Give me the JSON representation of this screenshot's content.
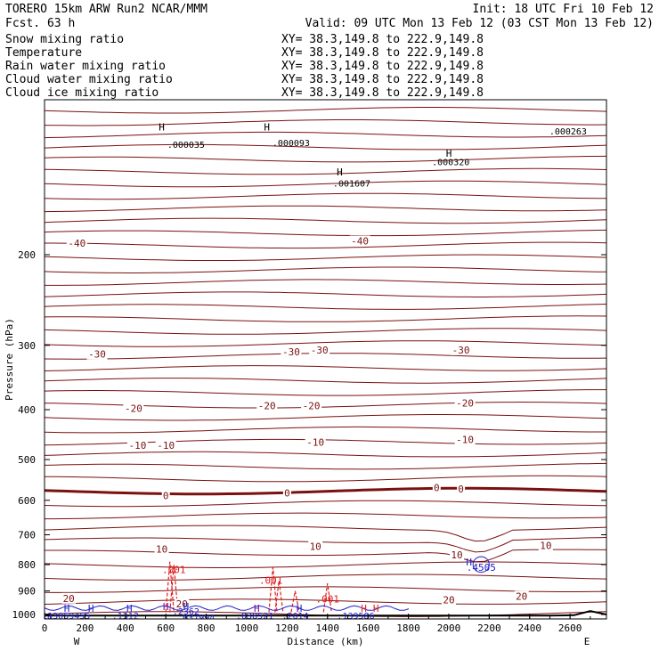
{
  "header": {
    "model": "TORERO   15km ARW   Run2   NCAR/MMM",
    "forecast": "Fcst.    63 h",
    "init": "Init: 18 UTC Fri 10 Feb 12",
    "valid": "Valid: 09 UTC Mon 13 Feb 12 (03 CST Mon 13 Feb 12)"
  },
  "legend": [
    {
      "label": "Snow mixing ratio",
      "color": "#000000",
      "xy": ""
    },
    {
      "label": "Temperature",
      "color": "#cc0000",
      "xy": "XY=  38.3,149.8 to 222.9,149.8"
    },
    {
      "label": "Rain water mixing ratio",
      "color": "#cc0000",
      "xy": "XY=  38.3,149.8 to 222.9,149.8"
    },
    {
      "label": "Cloud water mixing ratio",
      "color": "#1a1acc",
      "xy": "XY=  38.3,149.8 to 222.9,149.8"
    },
    {
      "label": "Cloud ice mixing ratio",
      "color": "#000000",
      "xy": "XY=  38.3,149.8 to 222.9,149.8"
    }
  ],
  "xy_first": "XY=  38.3,149.8 to 222.9,149.8",
  "colors": {
    "temperature": "#7a1010",
    "rain": "#e02020",
    "cloud_water": "#2020cc",
    "terrain": "#000000",
    "axis": "#000000"
  },
  "chart_data": {
    "type": "line",
    "xlabel": "Distance (km)",
    "ylabel": "Pressure (hPa)",
    "xlim": [
      0,
      2780
    ],
    "ylim": [
      1020,
      100
    ],
    "y_scale": "log",
    "x_ticks": [
      0,
      200,
      400,
      600,
      800,
      1000,
      1200,
      1400,
      1600,
      1800,
      2000,
      2200,
      2400,
      2600
    ],
    "y_ticks": [
      200,
      300,
      400,
      500,
      600,
      700,
      800,
      900,
      1000
    ],
    "x_end_labels": {
      "left": "W",
      "right": "E"
    },
    "temperature_labels": [
      {
        "x": 160,
        "p": 190,
        "text": "-40"
      },
      {
        "x": 1560,
        "p": 188,
        "text": "-40"
      },
      {
        "x": 260,
        "p": 312,
        "text": "-30"
      },
      {
        "x": 1220,
        "p": 309,
        "text": "-30"
      },
      {
        "x": 1360,
        "p": 306,
        "text": "-30"
      },
      {
        "x": 2060,
        "p": 306,
        "text": "-30"
      },
      {
        "x": 440,
        "p": 398,
        "text": "-20"
      },
      {
        "x": 1100,
        "p": 393,
        "text": "-20"
      },
      {
        "x": 1320,
        "p": 393,
        "text": "-20"
      },
      {
        "x": 2080,
        "p": 388,
        "text": "-20"
      },
      {
        "x": 460,
        "p": 469,
        "text": "-10"
      },
      {
        "x": 600,
        "p": 469,
        "text": "-10"
      },
      {
        "x": 1340,
        "p": 463,
        "text": "-10"
      },
      {
        "x": 2080,
        "p": 457,
        "text": "-10"
      },
      {
        "x": 600,
        "p": 588,
        "text": "0"
      },
      {
        "x": 1200,
        "p": 580,
        "text": "0"
      },
      {
        "x": 1940,
        "p": 567,
        "text": "0"
      },
      {
        "x": 2060,
        "p": 570,
        "text": "0"
      },
      {
        "x": 580,
        "p": 746,
        "text": "10"
      },
      {
        "x": 1340,
        "p": 737,
        "text": "10"
      },
      {
        "x": 2040,
        "p": 765,
        "text": "10"
      },
      {
        "x": 2480,
        "p": 735,
        "text": "10"
      },
      {
        "x": 120,
        "p": 930,
        "text": "20"
      },
      {
        "x": 680,
        "p": 954,
        "text": "20"
      },
      {
        "x": 2000,
        "p": 937,
        "text": "20"
      },
      {
        "x": 2360,
        "p": 922,
        "text": "20"
      }
    ],
    "rain_labels": [
      {
        "x": 640,
        "p": 818,
        "text": ".001"
      },
      {
        "x": 1120,
        "p": 858,
        "text": ".001"
      },
      {
        "x": 1400,
        "p": 932,
        "text": ".001"
      }
    ],
    "cloud_water_labels": [
      {
        "x": 2160,
        "p": 810,
        "text": ".4505"
      }
    ],
    "top_labels": [
      {
        "x": 700,
        "p": 122,
        "text": ".000035"
      },
      {
        "x": 1220,
        "p": 121,
        "text": ".000093"
      },
      {
        "x": 1520,
        "p": 145,
        "text": ".001607"
      },
      {
        "x": 2010,
        "p": 132,
        "text": ".000320"
      },
      {
        "x": 2590,
        "p": 115,
        "text": ".000263"
      }
    ],
    "bottom_labels": [
      {
        "x": 80,
        "p": 1003,
        "text": ".2113059455"
      },
      {
        "x": 400,
        "p": 1003,
        "text": ".1312"
      },
      {
        "x": 700,
        "p": 985,
        "text": ".2362"
      },
      {
        "x": 750,
        "p": 1012,
        "text": ".037994"
      },
      {
        "x": 1040,
        "p": 1003,
        "text": ".038521"
      },
      {
        "x": 1240,
        "p": 1003,
        "text": ".2614"
      },
      {
        "x": 1540,
        "p": 1003,
        "text": ".139586"
      },
      {
        "x": 0,
        "p": 1018,
        "text": "059"
      }
    ],
    "h_markers": [
      {
        "x": 110,
        "p": 972,
        "color": "blue"
      },
      {
        "x": 230,
        "p": 972,
        "color": "blue"
      },
      {
        "x": 420,
        "p": 972,
        "color": "blue"
      },
      {
        "x": 600,
        "p": 965,
        "color": "purple"
      },
      {
        "x": 700,
        "p": 965,
        "color": "blue"
      },
      {
        "x": 1050,
        "p": 972,
        "color": "purple"
      },
      {
        "x": 1260,
        "p": 972,
        "color": "blue"
      },
      {
        "x": 1580,
        "p": 972,
        "color": "red"
      },
      {
        "x": 1640,
        "p": 972,
        "color": "red"
      },
      {
        "x": 2100,
        "p": 790,
        "color": "blue"
      },
      {
        "x": 1460,
        "p": 138,
        "color": "black"
      },
      {
        "x": 580,
        "p": 113,
        "color": "black"
      },
      {
        "x": 1100,
        "p": 113,
        "color": "black"
      },
      {
        "x": 2000,
        "p": 127,
        "color": "black"
      }
    ]
  }
}
